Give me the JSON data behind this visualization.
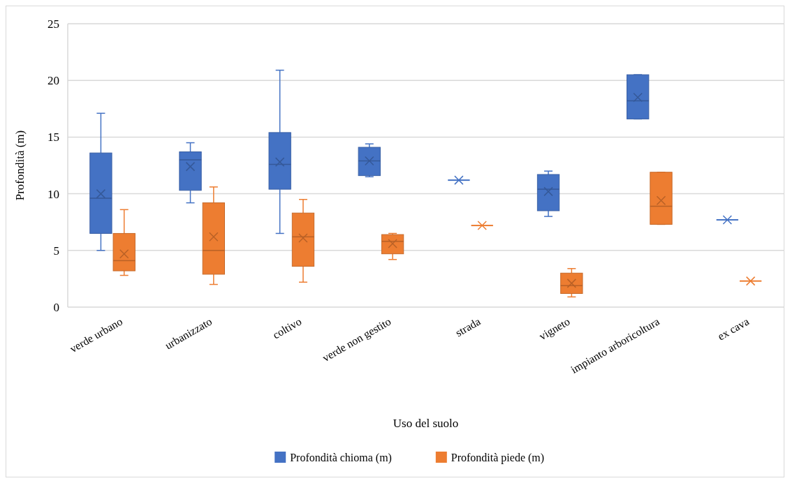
{
  "chart_data": {
    "type": "box",
    "xlabel": "Uso del suolo",
    "ylabel": "Profondità (m)",
    "categories": [
      "verde urbano",
      "urbanizzato",
      "coltivo",
      "verde non gestito",
      "strada",
      "vigneto",
      "impianto arboricoltura",
      "ex cava"
    ],
    "ylim": [
      0,
      25
    ],
    "yticks": [
      0,
      5,
      10,
      15,
      20,
      25
    ],
    "grid": "y",
    "legend": "bottom",
    "series": [
      {
        "name": "Profondità chioma (m)",
        "color": "#4472c4",
        "boxes": [
          {
            "low": 5.0,
            "q1": 6.5,
            "median": 9.6,
            "q3": 13.6,
            "high": 17.1,
            "mean": 10.0
          },
          {
            "low": 9.2,
            "q1": 10.3,
            "median": 13.0,
            "q3": 13.7,
            "high": 14.5,
            "mean": 12.4
          },
          {
            "low": 6.5,
            "q1": 10.4,
            "median": 12.6,
            "q3": 15.4,
            "high": 20.9,
            "mean": 12.8
          },
          {
            "low": 11.5,
            "q1": 11.6,
            "median": 12.9,
            "q3": 14.1,
            "high": 14.4,
            "mean": 12.9
          },
          {
            "low": 11.2,
            "q1": 11.2,
            "median": 11.2,
            "q3": 11.2,
            "high": 11.2,
            "mean": 11.2
          },
          {
            "low": 8.0,
            "q1": 8.5,
            "median": 10.4,
            "q3": 11.7,
            "high": 12.0,
            "mean": 10.2
          },
          {
            "low": 16.6,
            "q1": 16.6,
            "median": 18.2,
            "q3": 20.5,
            "high": 20.5,
            "mean": 18.5
          },
          {
            "low": 7.7,
            "q1": 7.7,
            "median": 7.7,
            "q3": 7.7,
            "high": 7.7,
            "mean": 7.7
          }
        ]
      },
      {
        "name": "Profondità piede (m)",
        "color": "#ed7d31",
        "boxes": [
          {
            "low": 2.8,
            "q1": 3.2,
            "median": 4.1,
            "q3": 6.5,
            "high": 8.6,
            "mean": 4.7
          },
          {
            "low": 2.0,
            "q1": 2.9,
            "median": 5.0,
            "q3": 9.2,
            "high": 10.6,
            "mean": 6.2
          },
          {
            "low": 2.2,
            "q1": 3.6,
            "median": 6.2,
            "q3": 8.3,
            "high": 9.5,
            "mean": 6.1
          },
          {
            "low": 4.2,
            "q1": 4.7,
            "median": 5.8,
            "q3": 6.4,
            "high": 6.5,
            "mean": 5.6
          },
          {
            "low": 7.2,
            "q1": 7.2,
            "median": 7.2,
            "q3": 7.2,
            "high": 7.2,
            "mean": 7.2
          },
          {
            "low": 0.9,
            "q1": 1.2,
            "median": 1.9,
            "q3": 3.0,
            "high": 3.4,
            "mean": 2.1
          },
          {
            "low": 7.3,
            "q1": 7.3,
            "median": 8.9,
            "q3": 11.9,
            "high": 11.9,
            "mean": 9.4
          },
          {
            "low": 2.3,
            "q1": 2.3,
            "median": 2.3,
            "q3": 2.3,
            "high": 2.3,
            "mean": 2.3
          }
        ]
      }
    ]
  }
}
